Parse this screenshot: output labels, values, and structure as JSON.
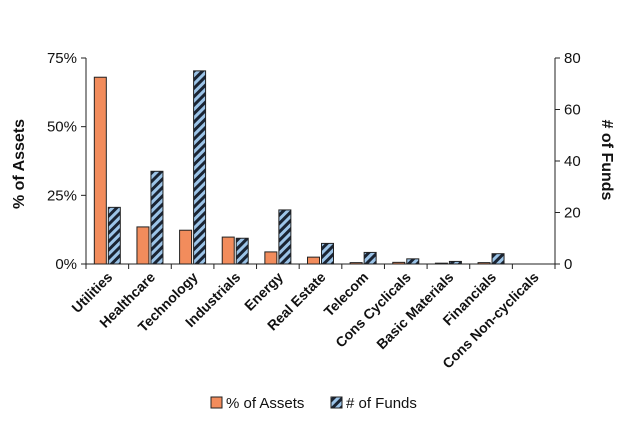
{
  "chart_data": {
    "type": "bar",
    "categories": [
      "Utilities",
      "Healthcare",
      "Technology",
      "Industrials",
      "Energy",
      "Real Estate",
      "Telecom",
      "Cons Cyclicals",
      "Basic Materials",
      "Financials",
      "Cons Non-cyclicals"
    ],
    "series": [
      {
        "name": "% of Assets",
        "axis": "left",
        "values": [
          68,
          13.5,
          12.3,
          9.8,
          4.4,
          2.5,
          0.5,
          0.6,
          0.3,
          0.5,
          0
        ],
        "color": "#f28c5c"
      },
      {
        "name": "# of Funds",
        "axis": "right",
        "values": [
          22,
          36,
          75,
          10,
          21,
          8,
          4.5,
          2,
          1,
          4,
          0
        ],
        "color": "#9cc4e8"
      }
    ],
    "yleft": {
      "label": "% of Assets",
      "lim": [
        0,
        75
      ],
      "ticks": [
        0,
        25,
        50,
        75
      ],
      "tick_labels": [
        "0%",
        "25%",
        "50%",
        "75%"
      ]
    },
    "yright": {
      "label": "# of Funds",
      "lim": [
        0,
        80
      ],
      "ticks": [
        0,
        20,
        40,
        60,
        80
      ],
      "tick_labels": [
        "0",
        "20",
        "40",
        "60",
        "80"
      ]
    },
    "title": "",
    "xlabel": "",
    "grid": false,
    "legend": "bottom"
  }
}
